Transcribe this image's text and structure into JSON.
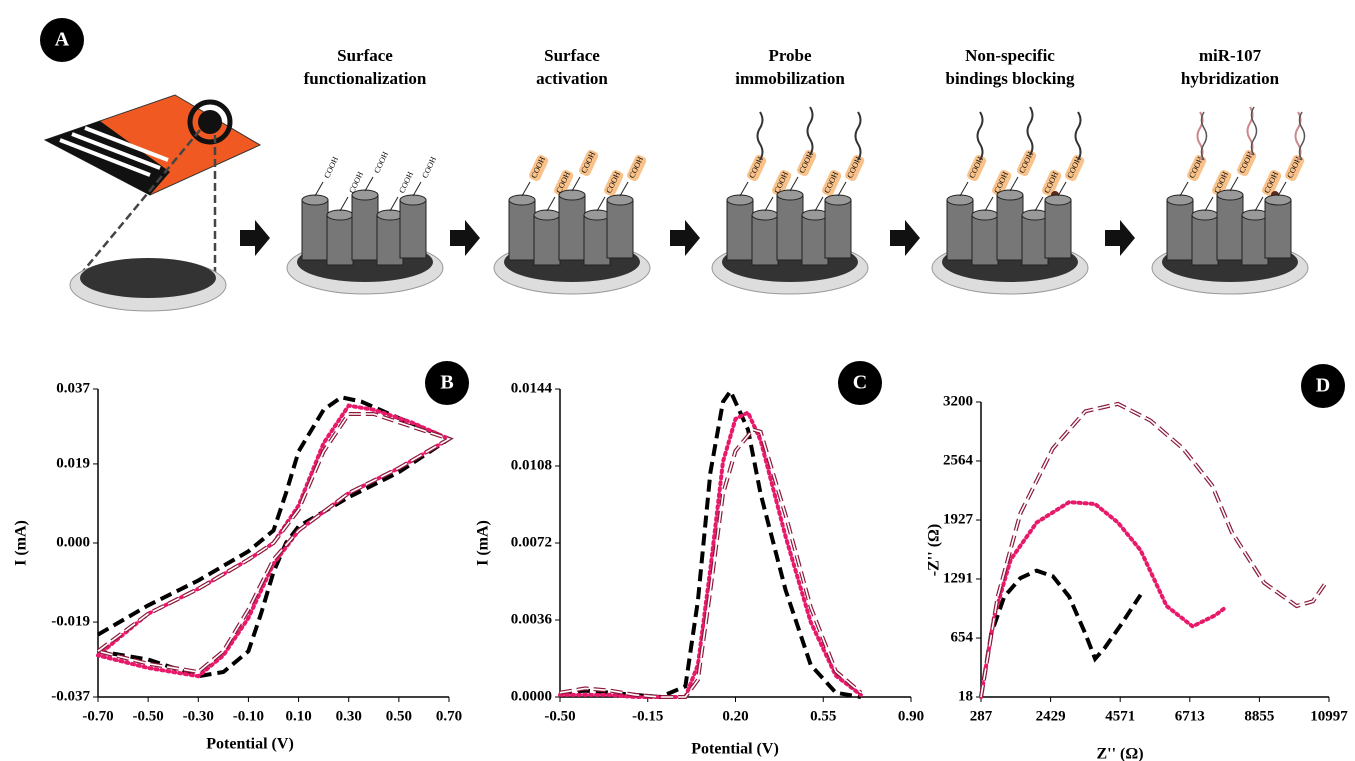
{
  "diagram": {
    "panel_label": "A",
    "molecule_label": "COOH",
    "steps": [
      {
        "title": [
          "Surface",
          "functionalization"
        ]
      },
      {
        "title": [
          "Surface",
          "activation"
        ]
      },
      {
        "title": [
          "Probe",
          "immobilization"
        ]
      },
      {
        "title": [
          "Non-specific",
          "bindings blocking"
        ]
      },
      {
        "title": [
          "miR-107",
          "hybridization"
        ]
      }
    ]
  },
  "chart_data": [
    {
      "type": "line",
      "panel_label": "B",
      "x_label": "Potential (V)",
      "y_label": "I (mA)",
      "xlim": [
        -0.7,
        0.7
      ],
      "ylim": [
        -0.037,
        0.037
      ],
      "xticks": [
        {
          "value": -0.7,
          "label": "-0.70"
        },
        {
          "value": -0.5,
          "label": "-0.50"
        },
        {
          "value": -0.3,
          "label": "-0.30"
        },
        {
          "value": -0.1,
          "label": "-0.10"
        },
        {
          "value": 0.1,
          "label": "0.10"
        },
        {
          "value": 0.3,
          "label": "0.30"
        },
        {
          "value": 0.5,
          "label": "0.50"
        },
        {
          "value": 0.7,
          "label": "0.70"
        }
      ],
      "yticks": [
        -0.037,
        -0.019,
        {
          "value": 0,
          "label": "0.000"
        },
        0.019,
        0.037
      ],
      "series": [
        {
          "color": "#000000",
          "line_style": "dashed",
          "x": [
            -0.7,
            -0.5,
            -0.3,
            -0.1,
            0.0,
            0.05,
            0.1,
            0.2,
            0.27,
            0.35,
            0.5,
            0.7,
            0.5,
            0.3,
            0.1,
            0.05,
            0.0,
            -0.05,
            -0.1,
            -0.2,
            -0.3,
            -0.5,
            -0.7
          ],
          "values": [
            -0.022,
            -0.015,
            -0.009,
            -0.002,
            0.003,
            0.012,
            0.022,
            0.032,
            0.035,
            0.034,
            0.03,
            0.025,
            0.017,
            0.011,
            0.004,
            0.0,
            -0.007,
            -0.017,
            -0.026,
            -0.031,
            -0.032,
            -0.028,
            -0.026
          ]
        },
        {
          "color": "#e8196a",
          "line_style": "dotted",
          "x": [
            -0.7,
            -0.5,
            -0.3,
            -0.1,
            0.0,
            0.1,
            0.2,
            0.3,
            0.4,
            0.55,
            0.7,
            0.5,
            0.3,
            0.1,
            0.0,
            -0.1,
            -0.2,
            -0.3,
            -0.5,
            -0.7
          ],
          "values": [
            -0.027,
            -0.017,
            -0.011,
            -0.004,
            0.0,
            0.009,
            0.024,
            0.033,
            0.032,
            0.029,
            0.025,
            0.018,
            0.012,
            0.003,
            -0.005,
            -0.018,
            -0.027,
            -0.032,
            -0.03,
            -0.027
          ]
        },
        {
          "color": "#8b1a3a",
          "line_style": "hollow-dashed",
          "x": [
            -0.7,
            -0.5,
            -0.3,
            -0.1,
            0.0,
            0.1,
            0.2,
            0.3,
            0.4,
            0.55,
            0.7,
            0.5,
            0.3,
            0.1,
            0.0,
            -0.1,
            -0.2,
            -0.3,
            -0.5,
            -0.7
          ],
          "values": [
            -0.026,
            -0.017,
            -0.011,
            -0.004,
            0.0,
            0.008,
            0.022,
            0.031,
            0.031,
            0.028,
            0.025,
            0.018,
            0.012,
            0.003,
            -0.004,
            -0.016,
            -0.026,
            -0.031,
            -0.029,
            -0.026
          ]
        }
      ]
    },
    {
      "type": "line",
      "panel_label": "C",
      "x_label": "Potential (V)",
      "y_label": "I (mA)",
      "xlim": [
        -0.5,
        0.9
      ],
      "ylim": [
        0,
        0.0144
      ],
      "xticks": [
        {
          "value": -0.5,
          "label": "-0.50"
        },
        -0.15,
        {
          "value": 0.2,
          "label": "0.20"
        },
        0.55,
        {
          "value": 0.9,
          "label": "0.90"
        }
      ],
      "yticks": [
        {
          "value": 0,
          "label": "0.0000"
        },
        0.0036,
        0.0072,
        0.0108,
        0.0144
      ],
      "series": [
        {
          "color": "#000000",
          "line_style": "dashed",
          "x": [
            -0.5,
            -0.4,
            -0.3,
            -0.2,
            -0.1,
            0.0,
            0.05,
            0.1,
            0.15,
            0.18,
            0.25,
            0.3,
            0.4,
            0.5,
            0.6,
            0.7
          ],
          "values": [
            0.0002,
            0.0003,
            0.0002,
            0.0001,
            0.0,
            0.0005,
            0.0045,
            0.0105,
            0.0138,
            0.0143,
            0.0125,
            0.0095,
            0.005,
            0.0015,
            0.0002,
            0.0
          ]
        },
        {
          "color": "#e8196a",
          "line_style": "dotted",
          "x": [
            -0.5,
            -0.4,
            -0.3,
            -0.2,
            -0.1,
            0.0,
            0.05,
            0.1,
            0.15,
            0.2,
            0.25,
            0.3,
            0.4,
            0.5,
            0.6,
            0.7
          ],
          "values": [
            0.0001,
            0.0001,
            0.0001,
            0.0,
            0.0,
            0.0,
            0.0015,
            0.006,
            0.011,
            0.013,
            0.0133,
            0.012,
            0.0075,
            0.0035,
            0.001,
            0.0001
          ]
        },
        {
          "color": "#8b1a3a",
          "line_style": "hollow-dashed",
          "x": [
            -0.5,
            -0.4,
            -0.3,
            -0.2,
            -0.1,
            0.0,
            0.05,
            0.1,
            0.15,
            0.2,
            0.27,
            0.3,
            0.4,
            0.5,
            0.6,
            0.7
          ],
          "values": [
            0.0002,
            0.0004,
            0.0003,
            0.0001,
            0.0,
            0.0,
            0.0008,
            0.005,
            0.0095,
            0.0115,
            0.0125,
            0.0124,
            0.0085,
            0.0042,
            0.0012,
            0.0002
          ]
        }
      ]
    },
    {
      "type": "line",
      "panel_label": "D",
      "x_label": "Z'' (Ω)",
      "y_label": "-Z'' (Ω)",
      "xlim": [
        287,
        10997
      ],
      "ylim": [
        18,
        3200
      ],
      "xticks": [
        287,
        2429,
        4571,
        6713,
        8855,
        10997
      ],
      "yticks": [
        18,
        654,
        1291,
        1927,
        2564,
        3200
      ],
      "series": [
        {
          "color": "#000000",
          "line_style": "dashed",
          "x": [
            287,
            600,
            1000,
            1500,
            2000,
            2500,
            3000,
            3500,
            3800,
            4100,
            4600,
            5200
          ],
          "values": [
            18,
            700,
            1100,
            1300,
            1380,
            1320,
            1100,
            700,
            430,
            550,
            800,
            1120
          ]
        },
        {
          "color": "#e8196a",
          "line_style": "dotted",
          "x": [
            287,
            700,
            1200,
            2000,
            3000,
            3800,
            4500,
            5200,
            6000,
            6800,
            7500,
            7800
          ],
          "values": [
            18,
            900,
            1500,
            1900,
            2120,
            2100,
            1900,
            1600,
            1000,
            780,
            900,
            980
          ]
        },
        {
          "color": "#8b1a3a",
          "line_style": "hollow-dashed",
          "x": [
            287,
            800,
            1500,
            2500,
            3500,
            4500,
            5500,
            6500,
            7400,
            8000,
            9000,
            10000,
            10500,
            10900
          ],
          "values": [
            18,
            1100,
            2000,
            2700,
            3100,
            3180,
            3000,
            2700,
            2300,
            1800,
            1250,
            1000,
            1050,
            1250
          ]
        }
      ]
    }
  ]
}
